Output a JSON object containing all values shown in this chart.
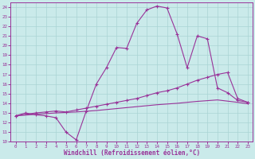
{
  "xlabel": "Windchill (Refroidissement éolien,°C)",
  "background_color": "#caeaea",
  "grid_color": "#aad4d4",
  "line_color": "#993399",
  "xlim": [
    -0.5,
    23.5
  ],
  "ylim": [
    10,
    24.5
  ],
  "xticks": [
    0,
    1,
    2,
    3,
    4,
    5,
    6,
    7,
    8,
    9,
    10,
    11,
    12,
    13,
    14,
    15,
    16,
    17,
    18,
    19,
    20,
    21,
    22,
    23
  ],
  "yticks": [
    10,
    11,
    12,
    13,
    14,
    15,
    16,
    17,
    18,
    19,
    20,
    21,
    22,
    23,
    24
  ],
  "line1_x": [
    0,
    1,
    2,
    3,
    4,
    5,
    6,
    7,
    8,
    9,
    10,
    11,
    12,
    13,
    14,
    15,
    16,
    17,
    18,
    19,
    20,
    21,
    22,
    23
  ],
  "line1_y": [
    12.7,
    13.0,
    12.8,
    12.7,
    12.5,
    11.0,
    10.2,
    13.2,
    16.0,
    17.7,
    19.8,
    19.7,
    22.3,
    23.7,
    24.1,
    23.9,
    21.2,
    17.7,
    21.0,
    20.7,
    15.6,
    15.1,
    14.3,
    14.1
  ],
  "line2_x": [
    0,
    2,
    3,
    4,
    5,
    6,
    7,
    8,
    9,
    10,
    11,
    12,
    13,
    14,
    15,
    16,
    17,
    18,
    19,
    20,
    21,
    22,
    23
  ],
  "line2_y": [
    12.7,
    13.0,
    13.1,
    13.2,
    13.1,
    13.3,
    13.5,
    13.7,
    13.9,
    14.1,
    14.3,
    14.5,
    14.8,
    15.1,
    15.3,
    15.6,
    16.0,
    16.4,
    16.7,
    17.0,
    17.2,
    14.5,
    14.1
  ],
  "line3_x": [
    0,
    2,
    4,
    6,
    8,
    10,
    12,
    14,
    16,
    18,
    20,
    22,
    23
  ],
  "line3_y": [
    12.7,
    12.85,
    13.0,
    13.1,
    13.25,
    13.45,
    13.65,
    13.85,
    14.0,
    14.2,
    14.35,
    14.1,
    13.95
  ]
}
